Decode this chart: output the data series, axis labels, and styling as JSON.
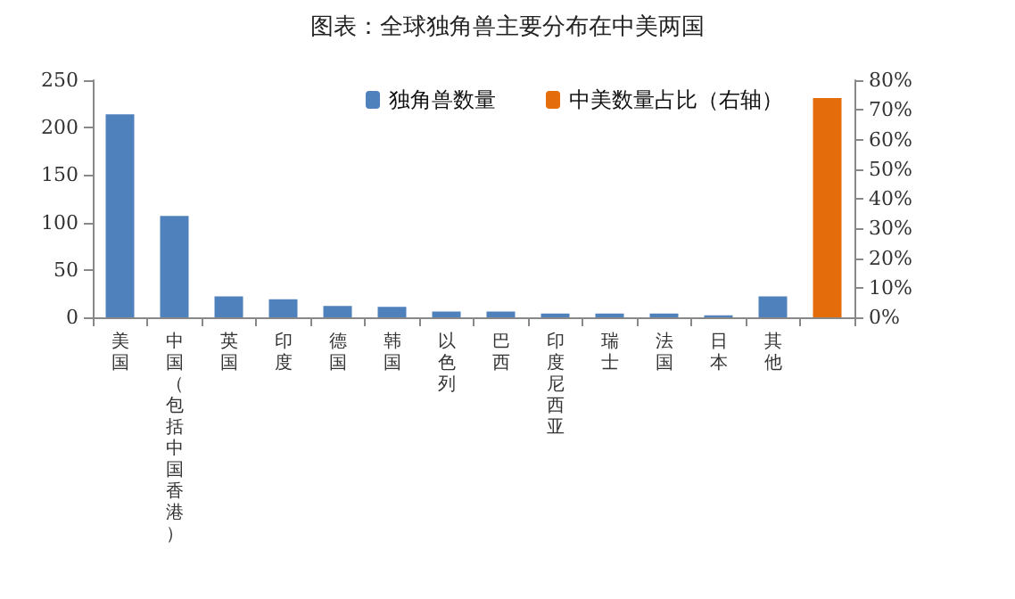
{
  "chart_data": {
    "type": "bar",
    "title": "图表：全球独角兽主要分布在中美两国",
    "categories": [
      "美国",
      "中国（包括中国香港）",
      "英国",
      "印度",
      "德国",
      "韩国",
      "以色列",
      "巴西",
      "印度尼西亚",
      "瑞士",
      "法国",
      "日本",
      "其他",
      null
    ],
    "series": [
      {
        "name": "独角兽数量",
        "color": "#4f81bd",
        "values": [
          214,
          107,
          22,
          19,
          12,
          11,
          6,
          6,
          4,
          4,
          4,
          2,
          22,
          null
        ]
      },
      {
        "name": "中美数量占比（右轴）",
        "color": "#e46c0a",
        "axis": "y2",
        "values": [
          null,
          null,
          null,
          null,
          null,
          null,
          null,
          null,
          null,
          null,
          null,
          null,
          null,
          74
        ]
      }
    ],
    "ylim": [
      0,
      250
    ],
    "yticks": [
      0,
      50,
      100,
      150,
      200,
      250
    ],
    "y2lim": [
      0,
      80
    ],
    "y2ticks": [
      {
        "value": 0,
        "label": "0%"
      },
      {
        "value": 10,
        "label": "10%"
      },
      {
        "value": 20,
        "label": "20%"
      },
      {
        "value": 30,
        "label": "30%"
      },
      {
        "value": 40,
        "label": "40%"
      },
      {
        "value": 50,
        "label": "50%"
      },
      {
        "value": 60,
        "label": "60%"
      },
      {
        "value": 70,
        "label": "70%"
      },
      {
        "value": 80,
        "label": "80%"
      }
    ],
    "grid": false,
    "legend": "top right"
  }
}
